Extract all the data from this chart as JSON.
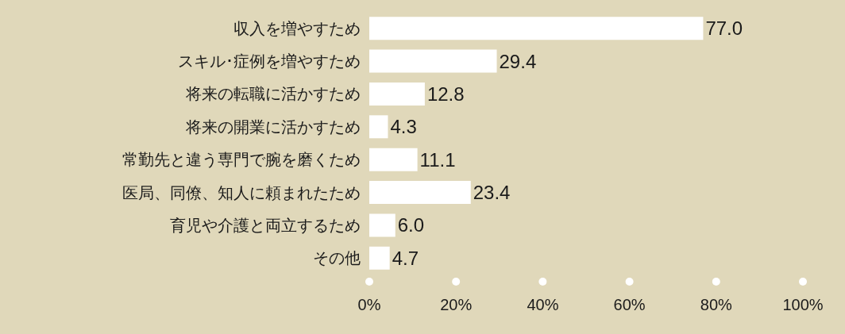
{
  "chart_data": {
    "type": "bar",
    "orientation": "horizontal",
    "categories": [
      "収入を増やすため",
      "スキル･症例を増やすため",
      "将来の転職に活かすため",
      "将来の開業に活かすため",
      "常勤先と違う専門で腕を磨くため",
      "医局、同僚、知人に頼まれたため",
      "育児や介護と両立するため",
      "その他"
    ],
    "values": [
      77.0,
      29.4,
      12.8,
      4.3,
      11.1,
      23.4,
      6.0,
      4.7
    ],
    "value_labels": [
      "77.0",
      "29.4",
      "12.8",
      "4.3",
      "11.1",
      "23.4",
      "6.0",
      "4.7"
    ],
    "color": "#ffffff",
    "xlim": [
      0,
      100
    ],
    "xticks": [
      {
        "value": 0,
        "label": "0%"
      },
      {
        "value": 20,
        "label": "20%"
      },
      {
        "value": 40,
        "label": "40%"
      },
      {
        "value": 60,
        "label": "60%"
      },
      {
        "value": 80,
        "label": "80%"
      },
      {
        "value": 100,
        "label": "100%"
      }
    ],
    "grid": false
  }
}
